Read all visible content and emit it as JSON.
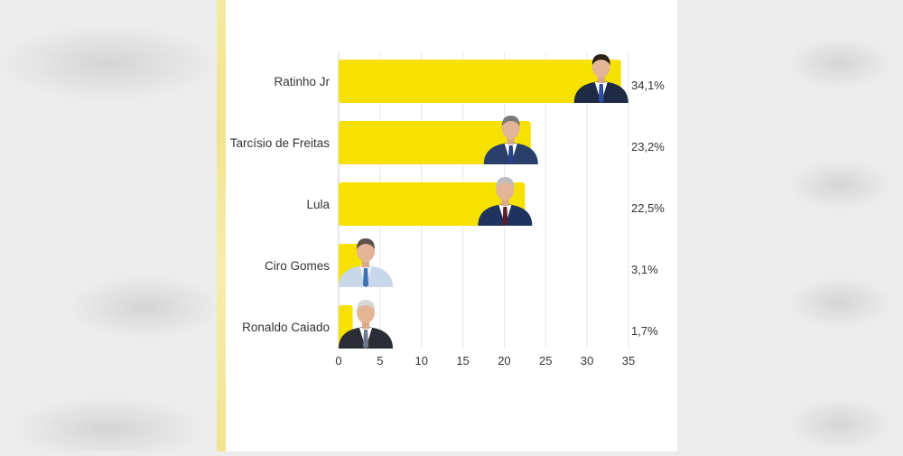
{
  "chart_data": {
    "type": "bar",
    "orientation": "horizontal",
    "categories": [
      "Ratinho Jr",
      "Tarcísio de Freitas",
      "Lula",
      "Ciro Gomes",
      "Ronaldo Caiado"
    ],
    "values": [
      34.1,
      23.2,
      22.5,
      3.1,
      1.7
    ],
    "value_labels": [
      "34,1%",
      "23,2%",
      "22,5%",
      "3,1%",
      "1,7%"
    ],
    "x_ticks": [
      0,
      5,
      10,
      15,
      20,
      25,
      30,
      35
    ],
    "x_tick_labels": [
      "0",
      "5",
      "10",
      "15",
      "20",
      "25",
      "30",
      "35"
    ],
    "xlim": [
      0,
      35
    ],
    "title": "",
    "xlabel": "",
    "ylabel": "",
    "grid": "vertical",
    "bar_color": "#f7e100",
    "grid_color": "#e6e6e6"
  }
}
